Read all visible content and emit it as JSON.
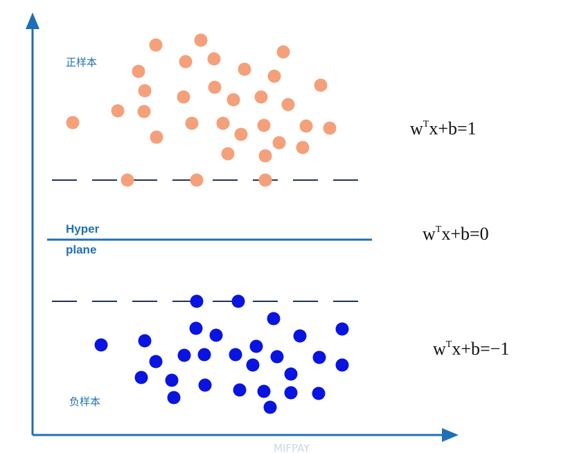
{
  "labels": {
    "positive": "正样本",
    "negative": "负样本"
  },
  "hyperplane": {
    "label": [
      "Hyper",
      "plane"
    ]
  },
  "equations": [
    {
      "w": "w",
      "sup": "T",
      "rest": "x+b=1"
    },
    {
      "w": "w",
      "sup": "T",
      "rest": "x+b=0"
    },
    {
      "w": "w",
      "sup": "T",
      "rest": "x+b=−1"
    }
  ],
  "watermark": "MIFPAY"
}
